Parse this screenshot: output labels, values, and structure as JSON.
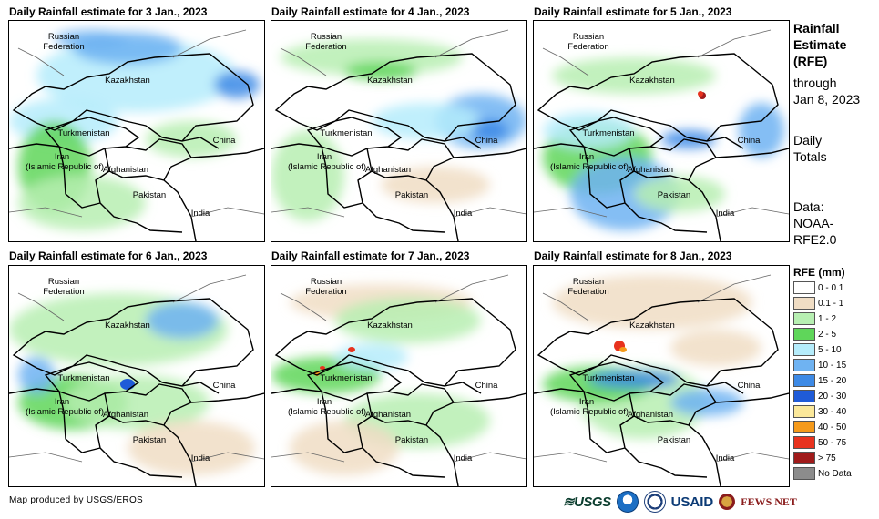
{
  "panels": [
    {
      "title": "Daily Rainfall estimate for 3 Jan., 2023"
    },
    {
      "title": "Daily Rainfall estimate for 4 Jan., 2023"
    },
    {
      "title": "Daily Rainfall estimate for 5 Jan., 2023"
    },
    {
      "title": "Daily Rainfall estimate for 6 Jan., 2023"
    },
    {
      "title": "Daily Rainfall estimate for 7 Jan., 2023"
    },
    {
      "title": "Daily Rainfall estimate for 8 Jan., 2023"
    }
  ],
  "map_labels": {
    "russia": "Russian\nFederation",
    "kazakhstan": "Kazakhstan",
    "turkmenistan": "Turkmenistan",
    "iran": "Iran\n(Islamic Republic of)",
    "afghanistan": "Afghanistan",
    "pakistan": "Pakistan",
    "china": "China",
    "india": "India"
  },
  "sidebar": {
    "heading": "Rainfall\nEstimate\n(RFE)",
    "through": "through\nJan 8, 2023",
    "totals": "Daily\nTotals",
    "source": "Data:\nNOAA-\nRFE2.0"
  },
  "legend": {
    "title": "RFE (mm)",
    "items": [
      {
        "label": "0 - 0.1",
        "color": "#ffffff"
      },
      {
        "label": "0.1 - 1",
        "color": "#f0ddc4"
      },
      {
        "label": "1 - 2",
        "color": "#b7efb2"
      },
      {
        "label": "2 - 5",
        "color": "#5fd65a"
      },
      {
        "label": "5 - 10",
        "color": "#b5ecfb"
      },
      {
        "label": "10 - 15",
        "color": "#6fb3f2"
      },
      {
        "label": "15 - 20",
        "color": "#3d8ae6"
      },
      {
        "label": "20 - 30",
        "color": "#1f5bd8"
      },
      {
        "label": "30 - 40",
        "color": "#fbe89a"
      },
      {
        "label": "40 - 50",
        "color": "#f59a1b"
      },
      {
        "label": "50 - 75",
        "color": "#e8321e"
      },
      {
        "label": "> 75",
        "color": "#a01b1b"
      },
      {
        "label": "No Data",
        "color": "#8c8c8c"
      }
    ]
  },
  "credit": "Map produced by USGS/EROS",
  "logos": {
    "usgs": "≋USGS",
    "usaid": "USAID",
    "fews": "FEWS NET"
  }
}
